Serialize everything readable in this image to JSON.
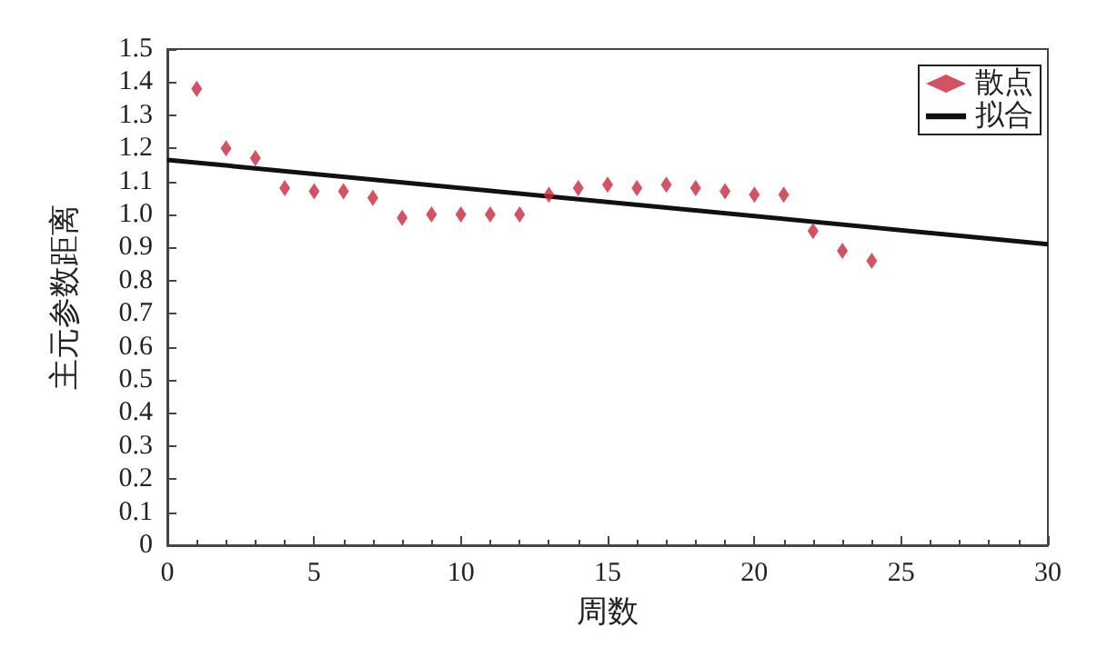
{
  "chart_data": {
    "type": "scatter",
    "xlabel": "周数",
    "ylabel": "主元参数距离",
    "legend": "top right",
    "grid": false,
    "xlim": [
      0,
      30
    ],
    "xticks": [
      0,
      5,
      10,
      15,
      20,
      25,
      30
    ],
    "ylim": [
      0,
      1.5
    ],
    "yticks": [
      {
        "value": 0,
        "label": "0"
      },
      {
        "value": 0.1,
        "label": "0.1"
      },
      {
        "value": 0.2,
        "label": "0.2"
      },
      {
        "value": 0.3,
        "label": "0.3"
      },
      {
        "value": 0.4,
        "label": "0.4"
      },
      {
        "value": 0.5,
        "label": "0.5"
      },
      {
        "value": 0.6,
        "label": "0.6"
      },
      {
        "value": 0.7,
        "label": "0.7"
      },
      {
        "value": 0.8,
        "label": "0.8"
      },
      {
        "value": 0.9,
        "label": "0.9"
      },
      {
        "value": 1.0,
        "label": "1.0"
      },
      {
        "value": 1.1,
        "label": "1.1"
      },
      {
        "value": 1.2,
        "label": "1.2"
      },
      {
        "value": 1.3,
        "label": "1.3"
      },
      {
        "value": 1.4,
        "label": "1.4"
      },
      {
        "value": 1.5,
        "label": "1.5"
      }
    ],
    "series": [
      {
        "name": "散点",
        "type": "scatter",
        "marker": "diamond",
        "color": "#c8283c",
        "x": [
          1,
          2,
          3,
          4,
          5,
          6,
          7,
          8,
          9,
          10,
          11,
          12,
          13,
          14,
          15,
          16,
          17,
          18,
          19,
          20,
          21,
          22,
          23,
          24
        ],
        "values": [
          1.38,
          1.2,
          1.17,
          1.08,
          1.07,
          1.07,
          1.05,
          0.99,
          1.0,
          1.0,
          1.0,
          1.0,
          1.06,
          1.08,
          1.09,
          1.08,
          1.09,
          1.08,
          1.07,
          1.06,
          1.06,
          0.95,
          0.89,
          0.86
        ]
      },
      {
        "name": "拟合",
        "type": "line",
        "marker": "none",
        "line_style": "solid",
        "color": "#111111",
        "x": [
          0,
          30
        ],
        "values": [
          1.165,
          0.91
        ]
      }
    ]
  }
}
